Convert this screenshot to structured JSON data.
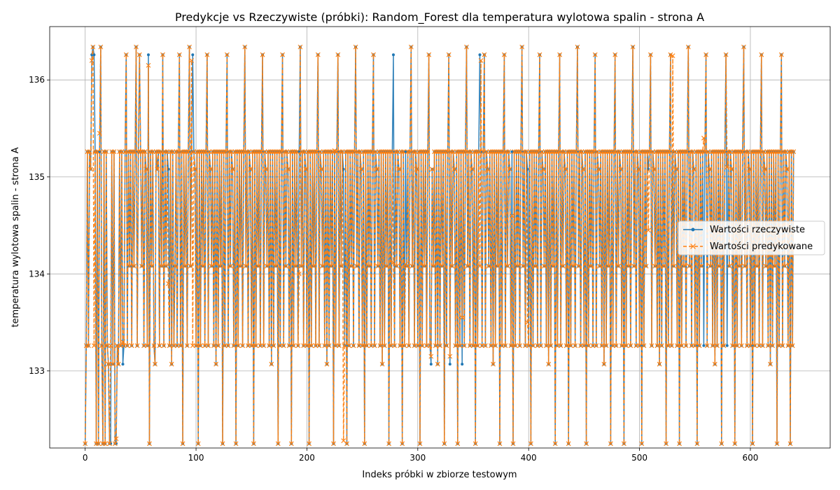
{
  "chart_data": {
    "type": "line",
    "title": "Predykcje vs Rzeczywiste (próbki): Random_Forest dla temperatura wylotowa spalin - strona A",
    "xlabel": "Indeks próbki w zbiorze testowym",
    "ylabel": "temperatura wylotowa spalin - strona A",
    "xlim": [
      -32,
      672
    ],
    "ylim": [
      132.205,
      136.55
    ],
    "xticks": [
      0,
      100,
      200,
      300,
      400,
      500,
      600
    ],
    "yticks": [
      133,
      134,
      135,
      136
    ],
    "grid": true,
    "legend_position": "center-right",
    "n_points": 640,
    "levels": [
      132.25,
      133.07,
      133.26,
      134.08,
      135.08,
      135.26,
      136.26,
      136.34
    ],
    "actual_levels_sequence": [
      0,
      2,
      5,
      2,
      5,
      4,
      6,
      7,
      2,
      5,
      0,
      5,
      0,
      5,
      7,
      2,
      0,
      5,
      0,
      5,
      2,
      1,
      0,
      2,
      5,
      1,
      5,
      0,
      5,
      2,
      1,
      5,
      2,
      5,
      4,
      2,
      5,
      6,
      2,
      5,
      3,
      5,
      2,
      5,
      3,
      5,
      7,
      2,
      5,
      6,
      5,
      3,
      5,
      2,
      5,
      4,
      2,
      5,
      0,
      5,
      3,
      5,
      2,
      1,
      5,
      4,
      5,
      2,
      5,
      3,
      6,
      2,
      5,
      3,
      5,
      4,
      2,
      5,
      1,
      5,
      2,
      3,
      5,
      2,
      5,
      6,
      2,
      5,
      0,
      5,
      3,
      5,
      2,
      5,
      7,
      3,
      5,
      2,
      5,
      4,
      2,
      5,
      0,
      5,
      2,
      5,
      3,
      5,
      2,
      5,
      6,
      2,
      5,
      4,
      3,
      5,
      2,
      5,
      1,
      5,
      2,
      5,
      3,
      5,
      0,
      5,
      2,
      5,
      6,
      2,
      5,
      3,
      5,
      4,
      2,
      5,
      0,
      5,
      2,
      5,
      3,
      5,
      2,
      5,
      7,
      3,
      5,
      2,
      5,
      4,
      2,
      5,
      0,
      5,
      2,
      5,
      3,
      5,
      2,
      5,
      6,
      2,
      5,
      4,
      3,
      5,
      2,
      5,
      1,
      5,
      2,
      5,
      3,
      5,
      0,
      5,
      2,
      5,
      6,
      2,
      5,
      3,
      5,
      4,
      2,
      5,
      0,
      5,
      2,
      5,
      3,
      5,
      2,
      5,
      7,
      3,
      5,
      2,
      5,
      4,
      2,
      5,
      0,
      5,
      2,
      5,
      3,
      5,
      2,
      5,
      6,
      2,
      5,
      4,
      3,
      5,
      2,
      5,
      1,
      5,
      2,
      5,
      3,
      5,
      0,
      5,
      2,
      5,
      6,
      2,
      5,
      3,
      5,
      4,
      2,
      5,
      0,
      5,
      2,
      5,
      3,
      5,
      2,
      5,
      7,
      3,
      5,
      2,
      5,
      4,
      2,
      5,
      0,
      5,
      2,
      5,
      3,
      5,
      2,
      5,
      6,
      2,
      5,
      4,
      3,
      5,
      2,
      5,
      1,
      5,
      2,
      5,
      3,
      5,
      0,
      5,
      2,
      5,
      6,
      2,
      5,
      3,
      5,
      4,
      2,
      5,
      0,
      5,
      2,
      5,
      3,
      5,
      2,
      5,
      7,
      3,
      5,
      2,
      5,
      4,
      2,
      5,
      0,
      5,
      2,
      5,
      3,
      5,
      2,
      5,
      6,
      2,
      5,
      4,
      3,
      5,
      2,
      5,
      1,
      5,
      2,
      5,
      3,
      5,
      0,
      5,
      2,
      5,
      6,
      2,
      5,
      3,
      5,
      4,
      2,
      5,
      0,
      5,
      2,
      5,
      3,
      5,
      2,
      5,
      7,
      3,
      5,
      2,
      5,
      4,
      2,
      5,
      0,
      5,
      2,
      5,
      3,
      5,
      2,
      5,
      6,
      2,
      5,
      4,
      3,
      5,
      2,
      5,
      1,
      5,
      2,
      5,
      3,
      5,
      0,
      5,
      2,
      5,
      6,
      2,
      5,
      3,
      5,
      4,
      2,
      5,
      0,
      5,
      2,
      5,
      3,
      5,
      2,
      5,
      7,
      3,
      5,
      2,
      5,
      4,
      2,
      5,
      0,
      5,
      2,
      5,
      3,
      5,
      2,
      5,
      6,
      2,
      5,
      4,
      3,
      5,
      2,
      5,
      1,
      5,
      2,
      5,
      3,
      5,
      0,
      5,
      2,
      5,
      6,
      2,
      5,
      3,
      5,
      4,
      2,
      5,
      0,
      5,
      2,
      5,
      3,
      5,
      2,
      5,
      7,
      3,
      5,
      2,
      5,
      4,
      2,
      5,
      0,
      5,
      2,
      5,
      3,
      5,
      2,
      5,
      6,
      2,
      5,
      4,
      3,
      5,
      2,
      5,
      1,
      5,
      2,
      5,
      3,
      5,
      0,
      5,
      2,
      5,
      6,
      2,
      5,
      3,
      5,
      4,
      2,
      5,
      0,
      5,
      2,
      5,
      3,
      5,
      2,
      5,
      7,
      3,
      5,
      2,
      5,
      4,
      2,
      5,
      0,
      5,
      2,
      5,
      3,
      5,
      2,
      5,
      6,
      2,
      5,
      4,
      3,
      5,
      2,
      5,
      1,
      5,
      2,
      5,
      3,
      5,
      0,
      5,
      2,
      5,
      6,
      2,
      5,
      3,
      5,
      4,
      2,
      5,
      0,
      5,
      2,
      5,
      3,
      5,
      2,
      5,
      7,
      3,
      5,
      2,
      5,
      4,
      2,
      5,
      0,
      5,
      2,
      5,
      3,
      5,
      2,
      5,
      6,
      2,
      5,
      4,
      3,
      5,
      2,
      5,
      1,
      5,
      2,
      5,
      3,
      5,
      0,
      5,
      2,
      5,
      6,
      2,
      5,
      3,
      5,
      4,
      2,
      5,
      0,
      5,
      2,
      5,
      3,
      5,
      2,
      5,
      7,
      3,
      5,
      2,
      5,
      4,
      2,
      5,
      0,
      5,
      2,
      5,
      3,
      5,
      2,
      5,
      6,
      2,
      5,
      4,
      3,
      5,
      2,
      5,
      1,
      5,
      2,
      5,
      3,
      5,
      0,
      5,
      2,
      5,
      6,
      2,
      5,
      3,
      5,
      4,
      2,
      5,
      0,
      5,
      2,
      5,
      3,
      5,
      2,
      7
    ],
    "prediction_deviations": [
      [
        6,
        136.2
      ],
      [
        13,
        135.45
      ],
      [
        28,
        132.3
      ],
      [
        34,
        133.3
      ],
      [
        57,
        136.15
      ],
      [
        75,
        133.9
      ],
      [
        96,
        136.2
      ],
      [
        193,
        134.0
      ],
      [
        225,
        135.27
      ],
      [
        233,
        132.28
      ],
      [
        278,
        134.12
      ],
      [
        289,
        134.1
      ],
      [
        312,
        133.15
      ],
      [
        329,
        133.15
      ],
      [
        340,
        133.55
      ],
      [
        357,
        136.2
      ],
      [
        385,
        134.6
      ],
      [
        399,
        133.5
      ],
      [
        508,
        134.45
      ],
      [
        530,
        136.25
      ],
      [
        558,
        135.4
      ],
      [
        579,
        135.1
      ]
    ],
    "actual_outliers": [
      [
        8,
        136.26
      ],
      [
        23,
        132.25
      ],
      [
        28,
        132.25
      ],
      [
        34,
        133.07
      ],
      [
        57,
        136.26
      ],
      [
        97,
        136.26
      ],
      [
        312,
        133.07
      ],
      [
        329,
        133.07
      ],
      [
        340,
        133.07
      ],
      [
        356,
        136.26
      ],
      [
        508,
        135.08
      ]
    ],
    "series": [
      {
        "name": "Wartości rzeczywiste",
        "color": "#1f77b4",
        "marker": "dot",
        "linestyle": "solid"
      },
      {
        "name": "Wartości predykowane",
        "color": "#ff7f0e",
        "marker": "x",
        "linestyle": "dashed"
      }
    ]
  }
}
